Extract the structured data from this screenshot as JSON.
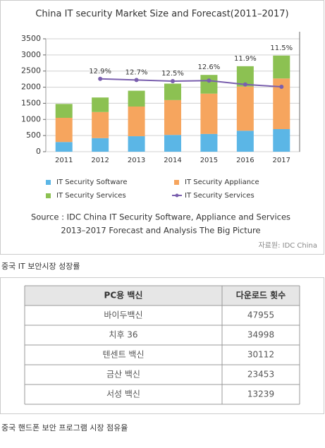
{
  "chart_data": {
    "type": "bar",
    "stacked": true,
    "title": "China IT security Market Size and Forecast(2011–2017)",
    "categories": [
      "2011",
      "2012",
      "2013",
      "2014",
      "2015",
      "2016",
      "2017"
    ],
    "series": [
      {
        "name": "IT Security Software",
        "color": "#5bb6e6",
        "values": [
          300,
          420,
          480,
          520,
          550,
          650,
          700
        ]
      },
      {
        "name": "IT Security Appliance",
        "color": "#f6a55e",
        "values": [
          750,
          810,
          920,
          1080,
          1250,
          1370,
          1570
        ]
      },
      {
        "name": "IT Security Services",
        "color": "#8cc152",
        "values": [
          430,
          450,
          490,
          510,
          580,
          630,
          710
        ]
      },
      {
        "name": "IT Security Services",
        "color": "#7a5fae",
        "type": "line",
        "axis": "y2",
        "values": [
          null,
          12.9,
          12.7,
          12.5,
          12.6,
          11.9,
          11.5
        ],
        "value_labels": [
          null,
          "12.9%",
          "12.7%",
          "12.5%",
          "12.6%",
          "11.9%",
          "11.5%"
        ]
      }
    ],
    "ylim": [
      0,
      3500
    ],
    "yticks": [
      0,
      500,
      1000,
      1500,
      2000,
      2500,
      3000,
      3500
    ],
    "y2lim": [
      0,
      20
    ],
    "grid": true,
    "note": [
      "Source : IDC China IT Security Software, Appliance and Services",
      "2013–2017 Forecast and Analysis The Big Picture"
    ],
    "credit": "자료원: IDC China"
  },
  "chart_caption": "중국 IT 보안시장 성장률",
  "table": {
    "header": [
      "PC용 백신",
      "다운로드 횟수"
    ],
    "rows": [
      [
        "바이두백신",
        47955
      ],
      [
        "치후 36",
        34998
      ],
      [
        "텐센트 백신",
        30112
      ],
      [
        "금산 백신",
        23453
      ],
      [
        "서성 백신",
        13239
      ]
    ]
  },
  "table_caption": "중국 핸드폰 보안 프로그램 시장 점유율"
}
